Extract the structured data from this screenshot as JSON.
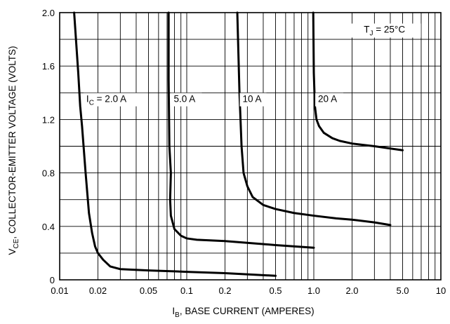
{
  "chart_data": {
    "type": "line",
    "x_scale": "log",
    "xlim": [
      0.01,
      10
    ],
    "ylim": [
      0,
      2.0
    ],
    "grid": true,
    "x_tick_labels": [
      "0.01",
      "0.02",
      "0.05",
      "0.1",
      "0.2",
      "0.5",
      "1.0",
      "2.0",
      "5.0",
      "10"
    ],
    "y_tick_labels": [
      "0",
      "0.4",
      "0.8",
      "1.2",
      "1.6",
      "2.0"
    ],
    "xlabel": {
      "main": "I",
      "sub": "B",
      "rest": ", BASE CURRENT (AMPERES)"
    },
    "ylabel": {
      "main": "V",
      "sub": "CE",
      "rest": ", COLLECTOR-EMITTER VOLTAGE (VOLTS)"
    },
    "annotation": {
      "main": "T",
      "sub": "J",
      "rest": " = 25°C"
    },
    "series": [
      {
        "name": "I_C = 2.0 A",
        "label": {
          "main": "I",
          "sub": "C",
          "rest": " = 2.0 A"
        },
        "points": [
          [
            0.013,
            2.0
          ],
          [
            0.014,
            1.55
          ],
          [
            0.0145,
            1.3
          ],
          [
            0.015,
            1.15
          ],
          [
            0.016,
            0.8
          ],
          [
            0.017,
            0.5
          ],
          [
            0.018,
            0.35
          ],
          [
            0.019,
            0.25
          ],
          [
            0.02,
            0.2
          ],
          [
            0.022,
            0.15
          ],
          [
            0.025,
            0.1
          ],
          [
            0.03,
            0.08
          ],
          [
            0.05,
            0.07
          ],
          [
            0.1,
            0.06
          ],
          [
            0.2,
            0.05
          ],
          [
            0.5,
            0.03
          ]
        ]
      },
      {
        "name": "5.0 A",
        "label": {
          "main": "5.0 A"
        },
        "points": [
          [
            0.072,
            2.0
          ],
          [
            0.072,
            1.5
          ],
          [
            0.073,
            1.0
          ],
          [
            0.075,
            0.8
          ],
          [
            0.074,
            0.6
          ],
          [
            0.075,
            0.48
          ],
          [
            0.08,
            0.38
          ],
          [
            0.09,
            0.33
          ],
          [
            0.1,
            0.31
          ],
          [
            0.12,
            0.3
          ],
          [
            0.2,
            0.29
          ],
          [
            0.5,
            0.26
          ],
          [
            1.0,
            0.24
          ]
        ]
      },
      {
        "name": "10 A",
        "label": {
          "main": "10 A"
        },
        "points": [
          [
            0.25,
            2.0
          ],
          [
            0.26,
            1.4
          ],
          [
            0.27,
            1.0
          ],
          [
            0.28,
            0.8
          ],
          [
            0.3,
            0.7
          ],
          [
            0.33,
            0.62
          ],
          [
            0.4,
            0.56
          ],
          [
            0.5,
            0.53
          ],
          [
            0.7,
            0.5
          ],
          [
            1.0,
            0.48
          ],
          [
            1.5,
            0.46
          ],
          [
            2.0,
            0.45
          ],
          [
            3.0,
            0.43
          ],
          [
            4.0,
            0.41
          ]
        ]
      },
      {
        "name": "20 A",
        "label": {
          "main": "20 A"
        },
        "points": [
          [
            0.99,
            2.0
          ],
          [
            1.0,
            1.55
          ],
          [
            1.02,
            1.3
          ],
          [
            1.05,
            1.2
          ],
          [
            1.1,
            1.15
          ],
          [
            1.2,
            1.1
          ],
          [
            1.4,
            1.06
          ],
          [
            1.6,
            1.04
          ],
          [
            2.0,
            1.02
          ],
          [
            3.0,
            1.0
          ],
          [
            5.0,
            0.97
          ]
        ]
      }
    ]
  }
}
